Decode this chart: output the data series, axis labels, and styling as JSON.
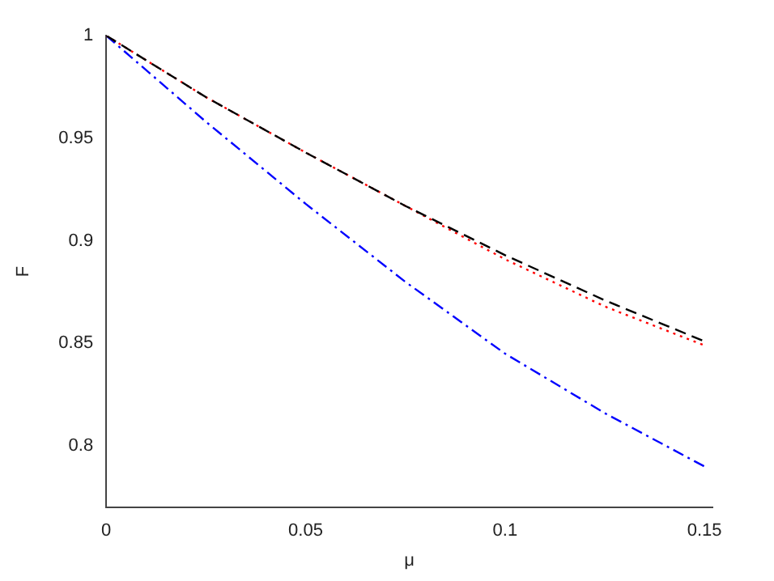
{
  "chart_data": {
    "type": "line",
    "xlabel": "μ",
    "ylabel": "F",
    "xlim": [
      0,
      0.152
    ],
    "xticks": [
      0,
      0.05,
      0.1,
      0.15
    ],
    "ylim": [
      0.77,
      1
    ],
    "yticks": [
      0.8,
      0.85,
      0.9,
      0.95,
      1
    ],
    "grid": false,
    "legend": false,
    "marker": "none",
    "x": [
      0,
      0.025,
      0.05,
      0.075,
      0.1,
      0.125,
      0.15
    ],
    "series": [
      {
        "color": "#000000",
        "line_style": "dashed",
        "values": [
          1,
          0.97,
          0.943,
          0.917,
          0.893,
          0.871,
          0.851
        ]
      },
      {
        "color": "#ff0000",
        "line_style": "dotted",
        "values": [
          1,
          0.97,
          0.943,
          0.917,
          0.891,
          0.868,
          0.849
        ]
      },
      {
        "color": "#0000ff",
        "line_style": "dashdot",
        "values": [
          1,
          0.958,
          0.918,
          0.88,
          0.845,
          0.816,
          0.79
        ]
      }
    ]
  }
}
